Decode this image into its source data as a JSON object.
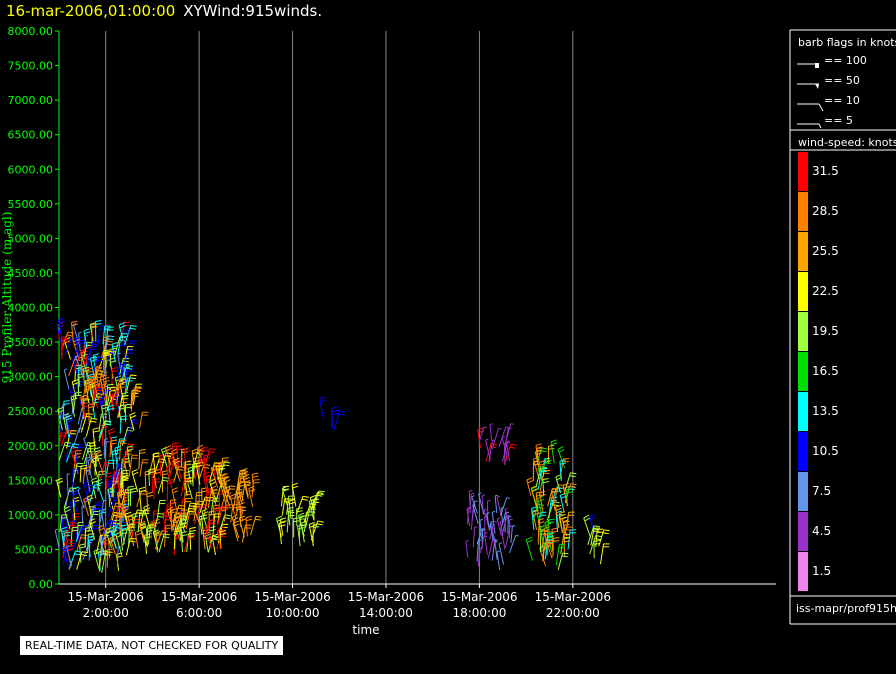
{
  "header": {
    "timestamp": "16-mar-2006,01:00:00",
    "title": "XYWind:915winds."
  },
  "chart_data": {
    "type": "wind-barb",
    "ylabel": "915 Profiler Altitude (m agl)",
    "xlabel": "time",
    "ylim": [
      0,
      8000
    ],
    "y_ticks": [
      "0.00",
      "500.00",
      "1000.00",
      "1500.00",
      "2000.00",
      "2500.00",
      "3000.00",
      "3500.00",
      "4000.00",
      "4500.00",
      "5000.00",
      "5500.00",
      "6000.00",
      "6500.00",
      "7000.00",
      "7500.00",
      "8000.00"
    ],
    "x_range_hours": [
      0,
      30.7
    ],
    "x_ticks": [
      {
        "hour": 2,
        "date": "15-Mar-2006",
        "time": "2:00:00"
      },
      {
        "hour": 6,
        "date": "15-Mar-2006",
        "time": "6:00:00"
      },
      {
        "hour": 10,
        "date": "15-Mar-2006",
        "time": "10:00:00"
      },
      {
        "hour": 14,
        "date": "15-Mar-2006",
        "time": "14:00:00"
      },
      {
        "hour": 18,
        "date": "15-Mar-2006",
        "time": "18:00:00"
      },
      {
        "hour": 22,
        "date": "15-Mar-2006",
        "time": "22:00:00"
      }
    ],
    "grid": true,
    "clusters": [
      {
        "t0": 0.0,
        "t1": 2.9,
        "z0": 150,
        "z1": 3600,
        "speeds": [
          31.5,
          28.5,
          22.5,
          19.5,
          13.5,
          10.5,
          7.5
        ]
      },
      {
        "t0": 1.0,
        "t1": 2.5,
        "z0": 2600,
        "z1": 2850,
        "speeds": [
          28.5
        ]
      },
      {
        "t0": 3.0,
        "t1": 3.6,
        "z0": 2200,
        "z1": 2600,
        "speeds": [
          28.5,
          22.5
        ]
      },
      {
        "t0": 2.6,
        "t1": 7.0,
        "z0": 400,
        "z1": 1750,
        "speeds": [
          31.5,
          28.5,
          25.5,
          22.5,
          19.5
        ]
      },
      {
        "t0": 7.0,
        "t1": 8.4,
        "z0": 600,
        "z1": 1400,
        "speeds": [
          28.5,
          25.5
        ]
      },
      {
        "t0": 9.5,
        "t1": 11.0,
        "z0": 500,
        "z1": 1150,
        "speeds": [
          19.5,
          22.5
        ]
      },
      {
        "t0": 11.2,
        "t1": 11.8,
        "z0": 2200,
        "z1": 2400,
        "speeds": [
          10.5
        ]
      },
      {
        "t0": 17.4,
        "t1": 19.4,
        "z0": 200,
        "z1": 1050,
        "speeds": [
          4.5,
          7.5
        ]
      },
      {
        "t0": 17.9,
        "t1": 19.3,
        "z0": 1700,
        "z1": 2100,
        "speeds": [
          4.5,
          31.5
        ]
      },
      {
        "t0": 20.2,
        "t1": 21.8,
        "z0": 200,
        "z1": 1800,
        "speeds": [
          13.5,
          19.5,
          16.5,
          28.5,
          25.5
        ]
      },
      {
        "t0": 22.6,
        "t1": 23.3,
        "z0": 250,
        "z1": 700,
        "speeds": [
          19.5,
          22.5,
          10.5
        ]
      }
    ]
  },
  "legend": {
    "barb_title": "barb flags in knots",
    "barbs": [
      {
        "label": "== 100",
        "kind": "100"
      },
      {
        "label": "== 50",
        "kind": "50"
      },
      {
        "label": "== 10",
        "kind": "10"
      },
      {
        "label": "== 5",
        "kind": "5"
      }
    ],
    "scale_title": "wind-speed: knots",
    "scale": [
      {
        "value": "31.5",
        "color": "#ff0000"
      },
      {
        "value": "28.5",
        "color": "#ff8000"
      },
      {
        "value": "25.5",
        "color": "#ffa500"
      },
      {
        "value": "22.5",
        "color": "#ffff00"
      },
      {
        "value": "19.5",
        "color": "#a0ff40"
      },
      {
        "value": "16.5",
        "color": "#00e000"
      },
      {
        "value": "13.5",
        "color": "#00ffff"
      },
      {
        "value": "10.5",
        "color": "#0000ff"
      },
      {
        "value": "7.5",
        "color": "#6495ed"
      },
      {
        "value": "4.5",
        "color": "#9932cc"
      },
      {
        "value": "1.5",
        "color": "#ee82ee"
      }
    ],
    "source": "iss-mapr/prof915h"
  },
  "warning": "REAL-TIME DATA, NOT CHECKED FOR QUALITY",
  "colors": {
    "axis": "#00ff00",
    "grid": "#888888",
    "title_time": "#ffff00"
  }
}
